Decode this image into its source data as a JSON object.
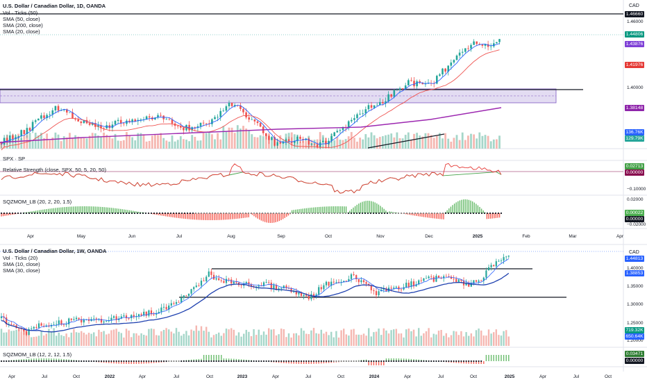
{
  "colors": {
    "up": "#26a69a",
    "down": "#ef5350",
    "sma_blue": "#2962ff",
    "sma_red": "#ef5350",
    "sma_purple": "#9c27b0",
    "rs_green": "#43a047",
    "rs_red": "#e53935",
    "mom_green": "#4caf50",
    "mom_red": "#f44336",
    "zone_fill": "#d1c4e9",
    "zone_edge": "#7e57c2"
  },
  "top": {
    "title": "U.S. Dollar / Canadian Dollar, 1D, OANDA",
    "legend": [
      "Vol · Ticks (50)",
      "SMA (50, close)",
      "SMA (200, close)",
      "SMA (20, close)"
    ],
    "currency": "CAD",
    "price_ticks": [
      "1.46000",
      "1.44000",
      "1.42000",
      "1.40000",
      "1.38000"
    ],
    "tags": [
      {
        "text": "1.46660",
        "color": "#131722"
      },
      {
        "text": "1.44806",
        "color": "#089981"
      },
      {
        "text": "1.43876",
        "color": "#7e3fd6"
      },
      {
        "text": "1.41976",
        "color": "#e53935"
      },
      {
        "text": "1.38148",
        "color": "#8e24aa"
      },
      {
        "text": "136.76K",
        "color": "#2962ff"
      },
      {
        "text": "129.79K",
        "color": "#26a69a"
      }
    ],
    "x_labels": [
      {
        "text": "Apr",
        "bold": false
      },
      {
        "text": "May",
        "bold": false
      },
      {
        "text": "Jun",
        "bold": false
      },
      {
        "text": "Jul",
        "bold": false
      },
      {
        "text": "Aug",
        "bold": false
      },
      {
        "text": "Sep",
        "bold": false
      },
      {
        "text": "Oct",
        "bold": false
      },
      {
        "text": "Nov",
        "bold": false
      },
      {
        "text": "Dec",
        "bold": false
      },
      {
        "text": "2025",
        "bold": true
      },
      {
        "text": "Feb",
        "bold": false
      },
      {
        "text": "Mar",
        "bold": false
      },
      {
        "text": "Apr",
        "bold": false
      }
    ]
  },
  "rs": {
    "symbol": "SPX · SP",
    "legend": "Relative Strength (close, SPX, 50, 5, 20, 50)",
    "ticks": [
      "−0.10000"
    ],
    "tags": [
      {
        "text": "0.02713",
        "color": "#43a047"
      },
      {
        "text": "0.00000",
        "color": "#880e4f"
      }
    ]
  },
  "mom": {
    "legend": "SQZMOM_LB (20, 2, 20, 1.5)",
    "ticks": [
      "0.02000",
      "−0.02000"
    ],
    "tags": [
      {
        "text": "0.00022",
        "color": "#4caf50"
      },
      {
        "text": "0.00000",
        "color": "#131722"
      }
    ]
  },
  "bottom": {
    "title": "U.S. Dollar / Canadian Dollar, 1W, OANDA",
    "legend": [
      "Vol · Ticks (20)",
      "SMA (10, close)",
      "SMA (30, close)"
    ],
    "currency": "CAD",
    "price_ticks": [
      "1.40000",
      "1.35000",
      "1.30000",
      "1.25000",
      "1.20000"
    ],
    "tags": [
      {
        "text": "1.44813",
        "color": "#2962ff"
      },
      {
        "text": "1.38853",
        "color": "#2962ff"
      },
      {
        "text": "719.32K",
        "color": "#089981"
      },
      {
        "text": "650.64K",
        "color": "#2962ff"
      }
    ],
    "mom_legend": "SQZMOM_LB (12, 2, 12, 1.5)",
    "mom_tags": [
      {
        "text": "0.03471",
        "color": "#2e7d32"
      },
      {
        "text": "0.00000",
        "color": "#131722"
      }
    ],
    "x_labels": [
      {
        "text": "Apr",
        "bold": false
      },
      {
        "text": "Jul",
        "bold": false
      },
      {
        "text": "Oct",
        "bold": false
      },
      {
        "text": "2022",
        "bold": true
      },
      {
        "text": "Apr",
        "bold": false
      },
      {
        "text": "Jul",
        "bold": false
      },
      {
        "text": "Oct",
        "bold": false
      },
      {
        "text": "2023",
        "bold": true
      },
      {
        "text": "Apr",
        "bold": false
      },
      {
        "text": "Jul",
        "bold": false
      },
      {
        "text": "Oct",
        "bold": false
      },
      {
        "text": "2024",
        "bold": true
      },
      {
        "text": "Apr",
        "bold": false
      },
      {
        "text": "Jul",
        "bold": false
      },
      {
        "text": "Oct",
        "bold": false
      },
      {
        "text": "2025",
        "bold": true
      },
      {
        "text": "Apr",
        "bold": false
      },
      {
        "text": "Jul",
        "bold": false
      },
      {
        "text": "Oct",
        "bold": false
      }
    ]
  },
  "chart_data": [
    {
      "type": "candlestick",
      "title": "U.S. Dollar / Canadian Dollar, 1D, OANDA",
      "period": "Mar 2024 – Jan 2025",
      "y_range": [
        1.33,
        1.47
      ],
      "path": [
        [
          "Mar",
          1.352
        ],
        [
          "Apr",
          1.355
        ],
        [
          "mid-Apr",
          1.375
        ],
        [
          "May",
          1.366
        ],
        [
          "Jun",
          1.37
        ],
        [
          "Jul",
          1.365
        ],
        [
          "Aug",
          1.385
        ],
        [
          "late-Aug",
          1.348
        ],
        [
          "Sep",
          1.35
        ],
        [
          "Oct",
          1.358
        ],
        [
          "Nov",
          1.395
        ],
        [
          "Dec",
          1.415
        ],
        [
          "late-Dec",
          1.445
        ],
        [
          "Jan",
          1.44
        ],
        [
          "mid-Jan",
          1.448
        ]
      ],
      "horizontal_levels": [
        1.4666,
        1.3975
      ],
      "zone": [
        1.3905,
        1.3975
      ],
      "indicators": [
        "Vol · Ticks (50)",
        "SMA (50, close)",
        "SMA (200, close)",
        "SMA (20, close)"
      ]
    },
    {
      "type": "line",
      "title": "Relative Strength (close, SPX, 50, 5, 20, 50)",
      "last_value": 0.02713
    },
    {
      "type": "bar",
      "title": "SQZMOM_LB (20, 2, 20, 1.5)",
      "last_value": 0.00022
    },
    {
      "type": "candlestick",
      "title": "U.S. Dollar / Canadian Dollar, 1W, OANDA",
      "period": "Mar 2021 – Jan 2025",
      "y_range": [
        1.19,
        1.45
      ],
      "path": [
        [
          "Apr 2021",
          1.24
        ],
        [
          "Jul 2021",
          1.21
        ],
        [
          "Oct 2021",
          1.25
        ],
        [
          "2022",
          1.265
        ],
        [
          "Apr 2022",
          1.27
        ],
        [
          "Jul 2022",
          1.29
        ],
        [
          "Oct 2022",
          1.39
        ],
        [
          "2023",
          1.35
        ],
        [
          "Apr 2023",
          1.355
        ],
        [
          "Jul 2023",
          1.325
        ],
        [
          "Oct 2023",
          1.385
        ],
        [
          "2024",
          1.34
        ],
        [
          "Apr 2024",
          1.37
        ],
        [
          "Jul 2024",
          1.375
        ],
        [
          "Oct 2024",
          1.355
        ],
        [
          "Nov 2024",
          1.4
        ],
        [
          "Jan 2025",
          1.44
        ]
      ],
      "horizontal_levels": [
        1.4,
        1.325
      ],
      "indicators": [
        "Vol · Ticks (20)",
        "SMA (10, close)",
        "SMA (30, close)"
      ]
    },
    {
      "type": "bar",
      "title": "SQZMOM_LB (12, 2, 12, 1.5)",
      "last_value": 0.03471
    }
  ]
}
